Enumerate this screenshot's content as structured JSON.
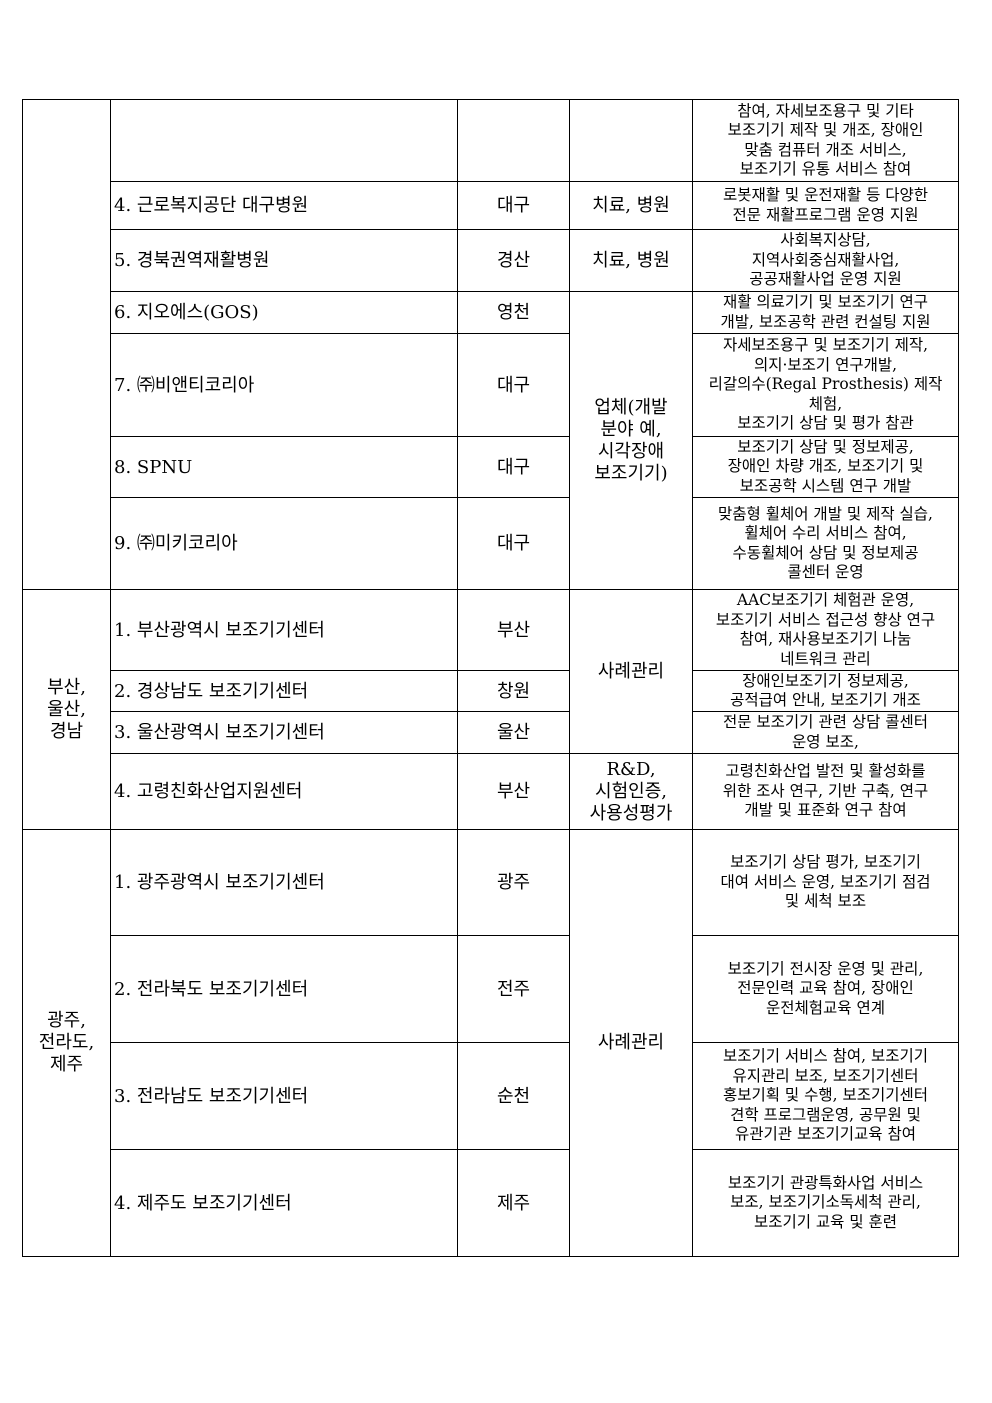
{
  "regions": [
    "",
    "부산,\n울산,\n경남",
    "광주,\n전라도,\n제주"
  ],
  "types": [
    "",
    "치료, 병원",
    "치료, 병원",
    "업체(개발\n분야 예,\n시각장애\n보조기기)",
    "사례관리",
    "R&D,\n시험인증,\n사용성평가",
    "사례관리"
  ],
  "rows": [
    {
      "name": "",
      "location": "",
      "desc": "참여, 자세보조용구 및 기타\n보조기기 제작 및 개조, 장애인\n맞춤 컴퓨터 개조 서비스,\n보조기기 유통 서비스 참여"
    },
    {
      "name": "4. 근로복지공단 대구병원",
      "location": "대구",
      "desc": "로봇재활 및 운전재활 등 다양한\n전문 재활프로그램 운영 지원"
    },
    {
      "name": "5. 경북권역재활병원",
      "location": "경산",
      "desc": "사회복지상담,\n지역사회중심재활사업,\n공공재활사업 운영 지원"
    },
    {
      "name": "6. 지오에스(GOS)",
      "location": "영천",
      "desc": "재활 의료기기 및 보조기기 연구\n개발, 보조공학 관련 컨설팅 지원"
    },
    {
      "name": "7. ㈜비앤티코리아",
      "location": "대구",
      "desc": "자세보조용구 및 보조기기 제작,\n의지·보조기 연구개발,\n리갈의수(Regal Prosthesis) 제작\n체험,\n보조기기 상담 및 평가 참관"
    },
    {
      "name": "8. SPNU",
      "location": "대구",
      "desc": "보조기기 상담 및 정보제공,\n장애인 차량 개조,  보조기기 및\n보조공학 시스템 연구 개발"
    },
    {
      "name": "9. ㈜미키코리아",
      "location": "대구",
      "desc": "맞춤형 휠체어 개발 및 제작 실습,\n휠체어 수리 서비스 참여,\n수동휠체어 상담 및 정보제공\n콜센터 운영"
    },
    {
      "name": "1. 부산광역시 보조기기센터",
      "location": "부산",
      "desc": "AAC보조기기 체험관 운영,\n보조기기 서비스 접근성 향상 연구\n참여, 재사용보조기기 나눔\n네트워크 관리"
    },
    {
      "name": "2. 경상남도 보조기기센터",
      "location": "창원",
      "desc": "장애인보조기기 정보제공,\n공적급여 안내, 보조기기 개조"
    },
    {
      "name": "3. 울산광역시 보조기기센터",
      "location": "울산",
      "desc": "전문 보조기기 관련 상담 콜센터\n운영 보조,"
    },
    {
      "name": "4. 고령친화산업지원센터",
      "location": "부산",
      "desc": "고령친화산업 발전 및 활성화를\n위한 조사 연구, 기반 구축, 연구\n개발 및 표준화 연구 참여"
    },
    {
      "name": "1. 광주광역시 보조기기센터",
      "location": "광주",
      "desc": "보조기기 상담 평가, 보조기기\n대여 서비스 운영, 보조기기 점검\n및 세척 보조"
    },
    {
      "name": "2. 전라북도 보조기기센터",
      "location": "전주",
      "desc": "보조기기 전시장 운영 및 관리,\n전문인력 교육 참여, 장애인\n운전체험교육 연계"
    },
    {
      "name": "3. 전라남도 보조기기센터",
      "location": "순천",
      "desc": "보조기기 서비스 참여, 보조기기\n유지관리 보조, 보조기기센터\n홍보기획 및 수행, 보조기기센터\n견학 프로그램운영, 공무원 및\n유관기관 보조기기교육 참여"
    },
    {
      "name": "4. 제주도 보조기기센터",
      "location": "제주",
      "desc": "보조기기 관광특화사업 서비스\n보조, 보조기기소독세척 관리,\n보조기기 교육 및 훈련"
    }
  ]
}
